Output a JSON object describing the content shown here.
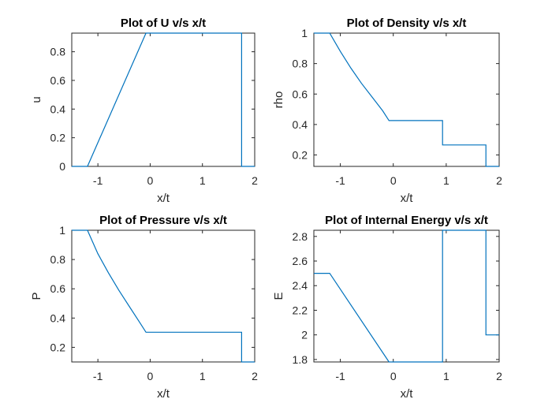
{
  "chart_data": [
    {
      "type": "line",
      "title": "Plot of U v/s x/t",
      "xlabel": "x/t",
      "ylabel": "u",
      "xlim": [
        -1.5,
        2
      ],
      "ylim": [
        0,
        0.93
      ],
      "xticks": [
        -1,
        0,
        1,
        2
      ],
      "xtick_labels": [
        "-1",
        "0",
        "1",
        "2"
      ],
      "yticks": [
        0,
        0.2,
        0.4,
        0.6,
        0.8
      ],
      "ytick_labels": [
        "0",
        "0.2",
        "0.4",
        "0.6",
        "0.8"
      ],
      "series": [
        {
          "name": "u",
          "color": "#0072BD",
          "x": [
            -1.5,
            -1.2,
            -0.08,
            1.75,
            1.75,
            2.0
          ],
          "y": [
            0,
            0,
            0.93,
            0.93,
            0,
            0
          ]
        }
      ]
    },
    {
      "type": "line",
      "title": "Plot of Density v/s x/t",
      "xlabel": "x/t",
      "ylabel": "rho",
      "xlim": [
        -1.5,
        2
      ],
      "ylim": [
        0.125,
        1
      ],
      "xticks": [
        -1,
        0,
        1,
        2
      ],
      "xtick_labels": [
        "-1",
        "0",
        "1",
        "2"
      ],
      "yticks": [
        0.2,
        0.4,
        0.6,
        0.8,
        1
      ],
      "ytick_labels": [
        "0.2",
        "0.4",
        "0.6",
        "0.8",
        "1"
      ],
      "series": [
        {
          "name": "rho",
          "color": "#0072BD",
          "x": [
            -1.5,
            -1.2,
            -1.0,
            -0.8,
            -0.6,
            -0.4,
            -0.2,
            -0.08,
            0.93,
            0.93,
            1.75,
            1.75,
            2.0
          ],
          "y": [
            1,
            1,
            0.88,
            0.77,
            0.67,
            0.58,
            0.49,
            0.426,
            0.426,
            0.266,
            0.266,
            0.125,
            0.125
          ]
        }
      ]
    },
    {
      "type": "line",
      "title": "Plot of Pressure v/s x/t",
      "xlabel": "x/t",
      "ylabel": "P",
      "xlim": [
        -1.5,
        2
      ],
      "ylim": [
        0.1,
        1
      ],
      "xticks": [
        -1,
        0,
        1,
        2
      ],
      "xtick_labels": [
        "-1",
        "0",
        "1",
        "2"
      ],
      "yticks": [
        0.2,
        0.4,
        0.6,
        0.8,
        1
      ],
      "ytick_labels": [
        "0.2",
        "0.4",
        "0.6",
        "0.8",
        "1"
      ],
      "series": [
        {
          "name": "P",
          "color": "#0072BD",
          "x": [
            -1.5,
            -1.2,
            -1.0,
            -0.8,
            -0.6,
            -0.4,
            -0.2,
            -0.08,
            1.75,
            1.75,
            2.0
          ],
          "y": [
            1,
            1,
            0.84,
            0.71,
            0.59,
            0.48,
            0.37,
            0.303,
            0.303,
            0.1,
            0.1
          ]
        }
      ]
    },
    {
      "type": "line",
      "title": "Plot of Internal Energy v/s x/t",
      "xlabel": "x/t",
      "ylabel": "E",
      "xlim": [
        -1.5,
        2
      ],
      "ylim": [
        1.78,
        2.85
      ],
      "xticks": [
        -1,
        0,
        1,
        2
      ],
      "xtick_labels": [
        "-1",
        "0",
        "1",
        "2"
      ],
      "yticks": [
        1.8,
        2,
        2.2,
        2.4,
        2.6,
        2.8
      ],
      "ytick_labels": [
        "1.8",
        "2",
        "2.2",
        "2.4",
        "2.6",
        "2.8"
      ],
      "series": [
        {
          "name": "E",
          "color": "#0072BD",
          "x": [
            -1.5,
            -1.2,
            -0.08,
            0.93,
            0.93,
            1.75,
            1.75,
            2.0
          ],
          "y": [
            2.5,
            2.5,
            1.78,
            1.78,
            2.85,
            2.85,
            2.0,
            2.0
          ]
        }
      ]
    }
  ]
}
